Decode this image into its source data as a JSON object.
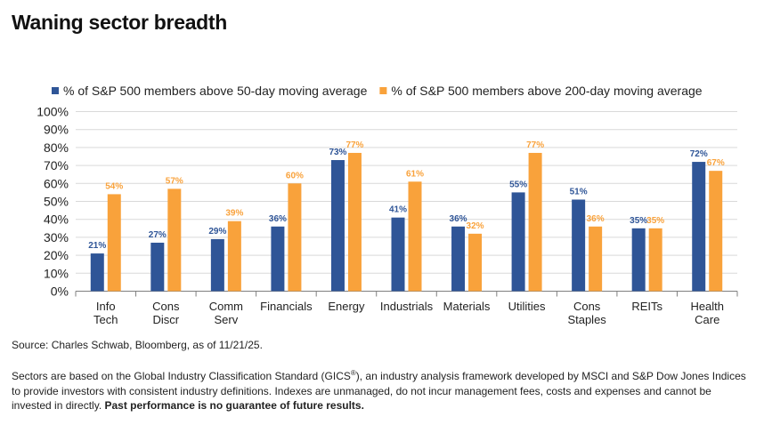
{
  "title": "Waning sector breadth",
  "colors": {
    "series1": "#2f5597",
    "series2": "#f9a23b",
    "axis": "#7f7f7f",
    "grid": "#d9d9d9",
    "label1": "#2f5597",
    "label2": "#f9a23b"
  },
  "chart_data": {
    "type": "bar",
    "categories": [
      [
        "Info",
        "Tech"
      ],
      [
        "Cons",
        "Discr"
      ],
      [
        "Comm",
        "Serv"
      ],
      [
        "Financials"
      ],
      [
        "Energy"
      ],
      [
        "Industrials"
      ],
      [
        "Materials"
      ],
      [
        "Utilities"
      ],
      [
        "Cons",
        "Staples"
      ],
      [
        "REITs"
      ],
      [
        "Health",
        "Care"
      ]
    ],
    "series": [
      {
        "name": "% of S&P 500 members above 50-day moving average",
        "values": [
          21,
          27,
          29,
          36,
          73,
          41,
          36,
          55,
          51,
          35,
          72
        ],
        "labels": [
          "21%",
          "27%",
          "29%",
          "36%",
          "73%",
          "41%",
          "36%",
          "55%",
          "51%",
          "35%",
          "72%"
        ]
      },
      {
        "name": "% of S&P 500 members above 200-day moving average",
        "values": [
          54,
          57,
          39,
          60,
          77,
          61,
          32,
          77,
          36,
          35,
          67
        ],
        "labels": [
          "54%",
          "57%",
          "39%",
          "60%",
          "77%",
          "61%",
          "32%",
          "77%",
          "36%",
          "35%",
          "67%"
        ]
      }
    ],
    "ylim": [
      0,
      100
    ],
    "yticks": [
      "0%",
      "10%",
      "20%",
      "30%",
      "40%",
      "50%",
      "60%",
      "70%",
      "80%",
      "90%",
      "100%"
    ],
    "xlabel": "",
    "ylabel": "",
    "grid": true,
    "legend": "top"
  },
  "source": "Source: Charles Schwab, Bloomberg, as of 11/21/25.",
  "note": {
    "part1": "Sectors are based on the Global Industry Classification Standard (GICS",
    "reg": "®",
    "part2": "), an industry analysis framework developed by MSCI and S&P Dow Jones Indices to provide investors with consistent industry definitions. Indexes are unmanaged, do not incur management fees, costs and expenses and cannot be invested in directly. ",
    "bold": "Past performance is no guarantee of future results."
  }
}
